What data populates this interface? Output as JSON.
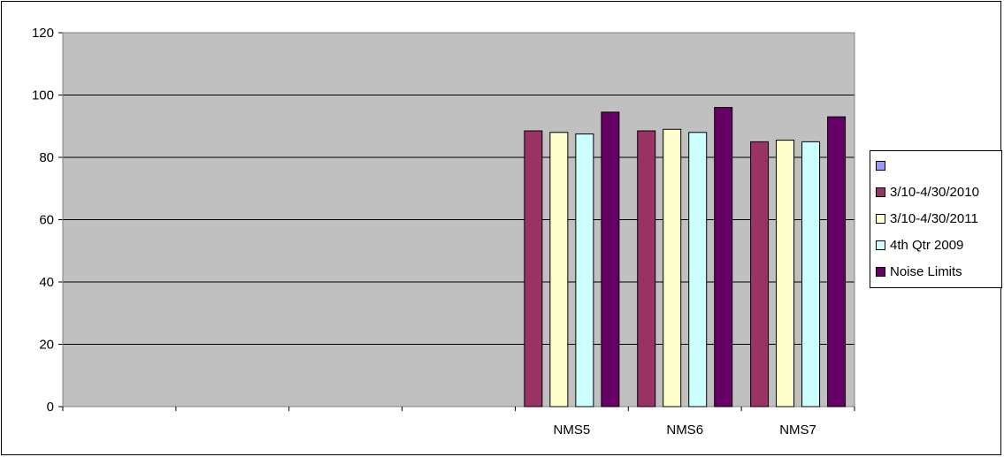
{
  "chart_data": {
    "type": "bar",
    "title": "",
    "xlabel": "",
    "ylabel": "",
    "ylim": [
      0,
      120
    ],
    "yticks": [
      0,
      20,
      40,
      60,
      80,
      100,
      120
    ],
    "grid": true,
    "plot_background": "#C0C0C0",
    "categories": [
      "",
      "",
      "",
      "",
      "NMS5",
      "NMS6",
      "NMS7"
    ],
    "series": [
      {
        "name": "",
        "color": "#9999FF",
        "values": [
          null,
          null,
          null,
          null,
          null,
          null,
          null
        ]
      },
      {
        "name": "3/10-4/30/2010",
        "color": "#993366",
        "values": [
          null,
          null,
          null,
          null,
          88.5,
          88.5,
          85
        ]
      },
      {
        "name": "3/10-4/30/2011",
        "color": "#FFFFCC",
        "values": [
          null,
          null,
          null,
          null,
          88,
          89,
          85.5
        ]
      },
      {
        "name": "4th Qtr 2009",
        "color": "#CCFFFF",
        "values": [
          null,
          null,
          null,
          null,
          87.5,
          88,
          85
        ]
      },
      {
        "name": "Noise Limits",
        "color": "#660066",
        "values": [
          null,
          null,
          null,
          null,
          94.5,
          96,
          93
        ]
      }
    ],
    "legend_position": "right"
  }
}
